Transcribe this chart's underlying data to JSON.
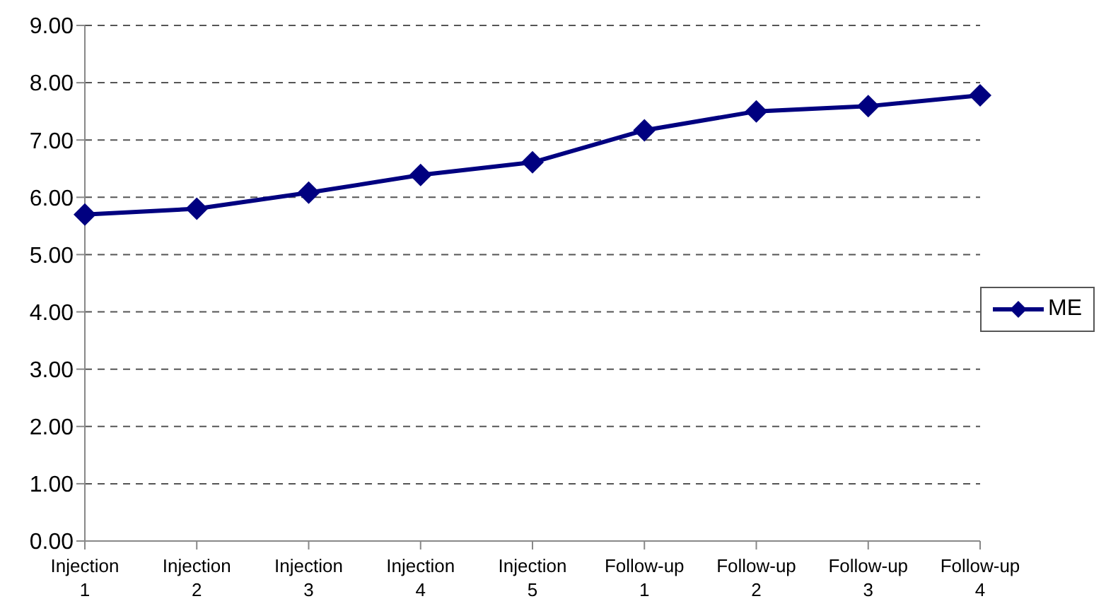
{
  "chart_data": {
    "type": "line",
    "categories": [
      "Injection 1",
      "Injection 2",
      "Injection 3",
      "Injection 4",
      "Injection 5",
      "Follow-up 1",
      "Follow-up 2",
      "Follow-up 3",
      "Follow-up 4"
    ],
    "series": [
      {
        "name": "ME",
        "color": "#000080",
        "values": [
          5.7,
          5.8,
          6.08,
          6.39,
          6.61,
          7.17,
          7.5,
          7.59,
          7.78
        ]
      }
    ],
    "ylim": [
      0,
      9
    ],
    "yticks": [
      {
        "value": 0,
        "label": "0.00"
      },
      {
        "value": 1,
        "label": "1.00"
      },
      {
        "value": 2,
        "label": "2.00"
      },
      {
        "value": 3,
        "label": "3.00"
      },
      {
        "value": 4,
        "label": "4.00"
      },
      {
        "value": 5,
        "label": "5.00"
      },
      {
        "value": 6,
        "label": "6.00"
      },
      {
        "value": 7,
        "label": "7.00"
      },
      {
        "value": 8,
        "label": "8.00"
      },
      {
        "value": 9,
        "label": "9.00"
      }
    ],
    "grid": "y",
    "legend": "right",
    "marker": "diamond",
    "line_style": "solid"
  }
}
